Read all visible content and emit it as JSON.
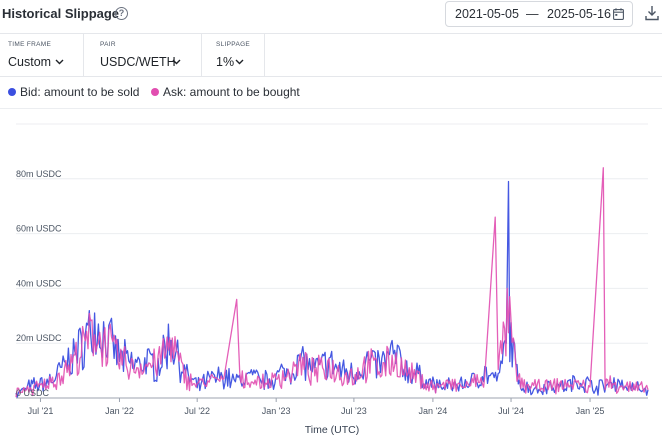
{
  "header": {
    "title": "Historical Slippage",
    "help_icon": "question-circle-icon",
    "date_start": "2021-05-05",
    "date_separator": "—",
    "date_end": "2025-05-16",
    "calendar_icon": "calendar-icon",
    "download_icon": "download-icon"
  },
  "controls": {
    "time_frame": {
      "label": "TIME FRAME",
      "value": "Custom"
    },
    "pair": {
      "label": "PAIR",
      "value": "USDC/WETH"
    },
    "slippage": {
      "label": "SLIPPAGE",
      "value": "1%"
    }
  },
  "legend": {
    "bid": {
      "label": "Bid: amount to be sold",
      "color": "#3b4fe0"
    },
    "ask": {
      "label": "Ask: amount to be bought",
      "color": "#e14eb0"
    }
  },
  "chart_data": {
    "type": "line",
    "xlabel": "Time (UTC)",
    "ylabel": "",
    "x_range": [
      "2021-05-05",
      "2025-05-16"
    ],
    "ylim": [
      0,
      100
    ],
    "y_ticks": [
      {
        "value": 0,
        "label": "0 USDC"
      },
      {
        "value": 20,
        "label": "20m USDC"
      },
      {
        "value": 40,
        "label": "40m USDC"
      },
      {
        "value": 60,
        "label": "60m USDC"
      },
      {
        "value": 80,
        "label": "80m USDC"
      }
    ],
    "x_ticks": [
      {
        "date": "2021-07-01",
        "label": "Jul '21"
      },
      {
        "date": "2022-01-01",
        "label": "Jan '22"
      },
      {
        "date": "2022-07-01",
        "label": "Jul '22"
      },
      {
        "date": "2023-01-01",
        "label": "Jan '23"
      },
      {
        "date": "2023-07-01",
        "label": "Jul '23"
      },
      {
        "date": "2024-01-01",
        "label": "Jan '24"
      },
      {
        "date": "2024-07-01",
        "label": "Jul '24"
      },
      {
        "date": "2025-01-01",
        "label": "Jan '25"
      }
    ],
    "grid": "horizontal",
    "series": [
      {
        "name": "Bid: amount to be sold",
        "color": "#3b4fe0",
        "points": [
          [
            "2021-05-05",
            1
          ],
          [
            "2021-06-01",
            4
          ],
          [
            "2021-07-01",
            5
          ],
          [
            "2021-08-01",
            7
          ],
          [
            "2021-09-01",
            13
          ],
          [
            "2021-10-01",
            18
          ],
          [
            "2021-11-01",
            27
          ],
          [
            "2021-12-01",
            22
          ],
          [
            "2022-01-01",
            15
          ],
          [
            "2022-02-01",
            12
          ],
          [
            "2022-03-01",
            13
          ],
          [
            "2022-04-01",
            12
          ],
          [
            "2022-05-01",
            22
          ],
          [
            "2022-06-01",
            9
          ],
          [
            "2022-07-01",
            4
          ],
          [
            "2022-08-01",
            7
          ],
          [
            "2022-09-01",
            8
          ],
          [
            "2022-10-01",
            6
          ],
          [
            "2022-11-01",
            8
          ],
          [
            "2022-12-01",
            6
          ],
          [
            "2023-01-01",
            8
          ],
          [
            "2023-02-01",
            10
          ],
          [
            "2023-03-01",
            14
          ],
          [
            "2023-04-01",
            10
          ],
          [
            "2023-05-01",
            13
          ],
          [
            "2023-06-01",
            10
          ],
          [
            "2023-07-01",
            9
          ],
          [
            "2023-08-01",
            13
          ],
          [
            "2023-09-01",
            12
          ],
          [
            "2023-10-01",
            16
          ],
          [
            "2023-11-01",
            10
          ],
          [
            "2023-12-01",
            8
          ],
          [
            "2024-01-01",
            5
          ],
          [
            "2024-02-01",
            4
          ],
          [
            "2024-03-01",
            5
          ],
          [
            "2024-04-01",
            6
          ],
          [
            "2024-05-01",
            9
          ],
          [
            "2024-06-01",
            6
          ],
          [
            "2024-06-20",
            20
          ],
          [
            "2024-06-25",
            79
          ],
          [
            "2024-06-28",
            25
          ],
          [
            "2024-07-15",
            8
          ],
          [
            "2024-08-01",
            4
          ],
          [
            "2024-09-01",
            3
          ],
          [
            "2024-10-01",
            5
          ],
          [
            "2024-11-01",
            4
          ],
          [
            "2024-12-01",
            6
          ],
          [
            "2025-01-01",
            5
          ],
          [
            "2025-02-01",
            4
          ],
          [
            "2025-03-01",
            6
          ],
          [
            "2025-04-01",
            4
          ],
          [
            "2025-05-16",
            3
          ]
        ]
      },
      {
        "name": "Ask: amount to be bought",
        "color": "#e14eb0",
        "points": [
          [
            "2021-05-05",
            2
          ],
          [
            "2021-06-01",
            3
          ],
          [
            "2021-07-01",
            4
          ],
          [
            "2021-08-01",
            6
          ],
          [
            "2021-09-01",
            11
          ],
          [
            "2021-10-01",
            16
          ],
          [
            "2021-11-01",
            24
          ],
          [
            "2021-12-01",
            20
          ],
          [
            "2022-01-01",
            14
          ],
          [
            "2022-02-01",
            11
          ],
          [
            "2022-03-01",
            12
          ],
          [
            "2022-04-01",
            13
          ],
          [
            "2022-05-01",
            20
          ],
          [
            "2022-06-01",
            8
          ],
          [
            "2022-07-01",
            5
          ],
          [
            "2022-08-01",
            6
          ],
          [
            "2022-09-01",
            7
          ],
          [
            "2022-10-01",
            36
          ],
          [
            "2022-10-08",
            6
          ],
          [
            "2022-11-01",
            7
          ],
          [
            "2022-12-01",
            5
          ],
          [
            "2023-01-01",
            7
          ],
          [
            "2023-02-01",
            9
          ],
          [
            "2023-03-01",
            12
          ],
          [
            "2023-04-01",
            9
          ],
          [
            "2023-05-01",
            12
          ],
          [
            "2023-06-01",
            9
          ],
          [
            "2023-07-01",
            8
          ],
          [
            "2023-08-01",
            12
          ],
          [
            "2023-09-01",
            11
          ],
          [
            "2023-10-01",
            14
          ],
          [
            "2023-11-01",
            9
          ],
          [
            "2023-12-01",
            7
          ],
          [
            "2024-01-01",
            4
          ],
          [
            "2024-02-01",
            5
          ],
          [
            "2024-03-01",
            4
          ],
          [
            "2024-04-01",
            5
          ],
          [
            "2024-05-01",
            8
          ],
          [
            "2024-05-25",
            66
          ],
          [
            "2024-06-01",
            10
          ],
          [
            "2024-06-25",
            30
          ],
          [
            "2024-07-15",
            7
          ],
          [
            "2024-08-01",
            5
          ],
          [
            "2024-09-01",
            4
          ],
          [
            "2024-10-01",
            4
          ],
          [
            "2024-11-01",
            5
          ],
          [
            "2024-12-01",
            5
          ],
          [
            "2025-01-01",
            4
          ],
          [
            "2025-02-01",
            84
          ],
          [
            "2025-02-05",
            5
          ],
          [
            "2025-03-01",
            5
          ],
          [
            "2025-04-01",
            4
          ],
          [
            "2025-05-16",
            3
          ]
        ]
      }
    ]
  }
}
